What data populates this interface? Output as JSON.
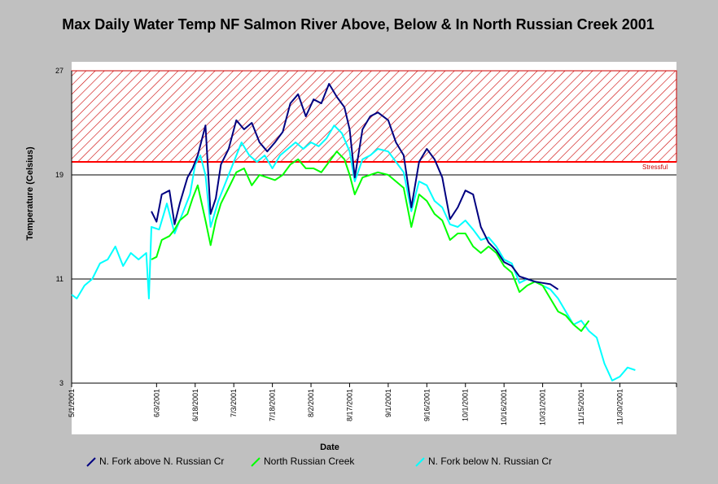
{
  "chart_data": {
    "type": "line",
    "title": "Max Daily Water Temp NF Salmon River Above, Below &  In North Russian Creek 2001",
    "xlabel": "Date",
    "ylabel": "Temperature (Celsius)",
    "ylim": [
      3,
      27
    ],
    "y_ticks": [
      "27",
      "19",
      "11",
      "3"
    ],
    "x_ticks": [
      "5/1/2001",
      "6/3/2001",
      "6/18/2001",
      "7/3/2001",
      "7/18/2001",
      "8/2/2001",
      "8/17/2001",
      "9/1/2001",
      "9/16/2001",
      "10/1/2001",
      "10/16/2001",
      "10/31/2001",
      "11/15/2001",
      "11/30/2001"
    ],
    "x_tick_days": [
      0,
      33,
      48,
      63,
      78,
      93,
      108,
      123,
      138,
      153,
      168,
      183,
      198,
      213
    ],
    "threshold": {
      "label": "Stressful",
      "value": 20,
      "color": "#ff0000"
    },
    "legend_position": "bottom",
    "series": [
      {
        "name": "N. Fork above N. Russian Cr",
        "color": "#000080",
        "x": [
          "6/1/2001",
          "6/3/2001",
          "6/5/2001",
          "6/8/2001",
          "6/10/2001",
          "6/12/2001",
          "6/15/2001",
          "6/17/2001",
          "6/19/2001",
          "6/22/2001",
          "6/24/2001",
          "6/26/2001",
          "6/28/2001",
          "7/1/2001",
          "7/4/2001",
          "7/7/2001",
          "7/10/2001",
          "7/13/2001",
          "7/16/2001",
          "7/19/2001",
          "7/22/2001",
          "7/25/2001",
          "7/28/2001",
          "7/31/2001",
          "8/3/2001",
          "8/6/2001",
          "8/9/2001",
          "8/12/2001",
          "8/15/2001",
          "8/17/2001",
          "8/19/2001",
          "8/22/2001",
          "8/25/2001",
          "8/28/2001",
          "9/1/2001",
          "9/4/2001",
          "9/7/2001",
          "9/10/2001",
          "9/13/2001",
          "9/16/2001",
          "9/19/2001",
          "9/22/2001",
          "9/25/2001",
          "9/28/2001",
          "10/1/2001",
          "10/4/2001",
          "10/7/2001",
          "10/10/2001",
          "10/13/2001",
          "10/16/2001",
          "10/19/2001",
          "10/22/2001",
          "10/25/2001",
          "10/28/2001",
          "10/31/2001",
          "11/3/2001",
          "11/6/2001"
        ],
        "y": [
          16.2,
          15.4,
          17.5,
          17.8,
          15.2,
          16.8,
          18.8,
          19.5,
          20.5,
          22.8,
          16.0,
          17.2,
          19.8,
          21.0,
          23.2,
          22.5,
          23.0,
          21.5,
          20.8,
          21.5,
          22.3,
          24.5,
          25.2,
          23.5,
          24.8,
          24.5,
          26.0,
          25.0,
          24.2,
          22.5,
          18.8,
          22.5,
          23.5,
          23.8,
          23.2,
          21.5,
          20.5,
          16.5,
          20.0,
          21.0,
          20.2,
          18.8,
          15.6,
          16.5,
          17.8,
          17.5,
          15.0,
          13.8,
          13.2,
          12.3,
          12.0,
          11.2,
          11.0,
          10.8,
          10.7,
          10.6,
          10.2
        ]
      },
      {
        "name": "North Russian Creek",
        "color": "#00ff00",
        "x": [
          "6/1/2001",
          "6/3/2001",
          "6/5/2001",
          "6/8/2001",
          "6/10/2001",
          "6/12/2001",
          "6/15/2001",
          "6/17/2001",
          "6/19/2001",
          "6/22/2001",
          "6/24/2001",
          "6/26/2001",
          "6/28/2001",
          "7/1/2001",
          "7/4/2001",
          "7/7/2001",
          "7/10/2001",
          "7/13/2001",
          "7/16/2001",
          "7/19/2001",
          "7/22/2001",
          "7/25/2001",
          "7/28/2001",
          "7/31/2001",
          "8/3/2001",
          "8/6/2001",
          "8/9/2001",
          "8/12/2001",
          "8/15/2001",
          "8/17/2001",
          "8/19/2001",
          "8/22/2001",
          "8/25/2001",
          "8/28/2001",
          "9/1/2001",
          "9/4/2001",
          "9/7/2001",
          "9/10/2001",
          "9/13/2001",
          "9/16/2001",
          "9/19/2001",
          "9/22/2001",
          "9/25/2001",
          "9/28/2001",
          "10/1/2001",
          "10/4/2001",
          "10/7/2001",
          "10/10/2001",
          "10/13/2001",
          "10/16/2001",
          "10/19/2001",
          "10/22/2001",
          "10/25/2001",
          "10/28/2001",
          "10/31/2001",
          "11/3/2001",
          "11/6/2001",
          "11/9/2001",
          "11/12/2001",
          "11/15/2001",
          "11/18/2001"
        ],
        "y": [
          12.5,
          12.7,
          14.0,
          14.3,
          14.8,
          15.5,
          16.0,
          17.2,
          18.2,
          15.5,
          13.6,
          15.5,
          16.8,
          18.0,
          19.2,
          19.5,
          18.2,
          19.0,
          18.8,
          18.6,
          19.0,
          19.8,
          20.2,
          19.5,
          19.5,
          19.2,
          20.0,
          20.8,
          20.2,
          19.0,
          17.5,
          18.8,
          19.0,
          19.2,
          19.0,
          18.5,
          18.0,
          15.0,
          17.5,
          17.0,
          16.0,
          15.5,
          14.0,
          14.5,
          14.5,
          13.5,
          13.0,
          13.5,
          13.0,
          12.0,
          11.5,
          10.0,
          10.5,
          10.8,
          10.5,
          9.5,
          8.5,
          8.2,
          7.5,
          7.0,
          7.8
        ]
      },
      {
        "name": "N. Fork below N. Russian Cr",
        "color": "#00ffff",
        "x": [
          "5/1/2001",
          "5/3/2001",
          "5/6/2001",
          "5/9/2001",
          "5/12/2001",
          "5/15/2001",
          "5/18/2001",
          "5/21/2001",
          "5/24/2001",
          "5/27/2001",
          "5/30/2001",
          "5/31/2001",
          "6/1/2001",
          "6/4/2001",
          "6/7/2001",
          "6/10/2001",
          "6/13/2001",
          "6/16/2001",
          "6/18/2001",
          "6/20/2001",
          "6/22/2001",
          "6/24/2001",
          "6/27/2001",
          "6/30/2001",
          "7/3/2001",
          "7/6/2001",
          "7/9/2001",
          "7/12/2001",
          "7/15/2001",
          "7/18/2001",
          "7/21/2001",
          "7/24/2001",
          "7/27/2001",
          "7/30/2001",
          "8/2/2001",
          "8/5/2001",
          "8/8/2001",
          "8/11/2001",
          "8/14/2001",
          "8/17/2001",
          "8/19/2001",
          "8/22/2001",
          "8/25/2001",
          "8/28/2001",
          "9/1/2001",
          "9/4/2001",
          "9/7/2001",
          "9/10/2001",
          "9/13/2001",
          "9/16/2001",
          "9/19/2001",
          "9/22/2001",
          "9/25/2001",
          "9/28/2001",
          "10/1/2001",
          "10/4/2001",
          "10/7/2001",
          "10/10/2001",
          "10/13/2001",
          "10/16/2001",
          "10/19/2001",
          "10/22/2001",
          "10/25/2001",
          "10/28/2001",
          "10/31/2001",
          "11/3/2001",
          "11/6/2001",
          "11/9/2001",
          "11/12/2001",
          "11/15/2001",
          "11/18/2001",
          "11/21/2001",
          "11/24/2001",
          "11/27/2001",
          "11/30/2001",
          "12/3/2001",
          "12/6/2001"
        ],
        "y": [
          9.8,
          9.5,
          10.5,
          11.0,
          12.2,
          12.5,
          13.5,
          12.0,
          13.0,
          12.5,
          13.0,
          9.5,
          15.0,
          14.8,
          16.8,
          14.5,
          16.0,
          17.5,
          19.8,
          20.5,
          19.0,
          15.0,
          17.0,
          18.5,
          20.0,
          21.5,
          20.5,
          20.0,
          20.5,
          19.5,
          20.5,
          21.0,
          21.5,
          21.0,
          21.5,
          21.2,
          21.8,
          22.8,
          22.2,
          20.8,
          18.5,
          20.2,
          20.5,
          21.0,
          20.8,
          20.0,
          19.2,
          16.2,
          18.5,
          18.2,
          17.0,
          16.5,
          15.2,
          15.0,
          15.5,
          14.8,
          14.0,
          14.2,
          13.5,
          12.5,
          12.2,
          10.7,
          11.0,
          10.8,
          10.5,
          10.2,
          9.5,
          8.5,
          7.5,
          7.8,
          7.0,
          6.5,
          4.5,
          3.2,
          3.5,
          4.2,
          4.0
        ]
      }
    ]
  },
  "legend": [
    {
      "label": "N. Fork above N. Russian Cr",
      "color": "#000080"
    },
    {
      "label": "North Russian Creek",
      "color": "#00ff00"
    },
    {
      "label": "N. Fork below N. Russian Cr",
      "color": "#00ffff"
    }
  ]
}
